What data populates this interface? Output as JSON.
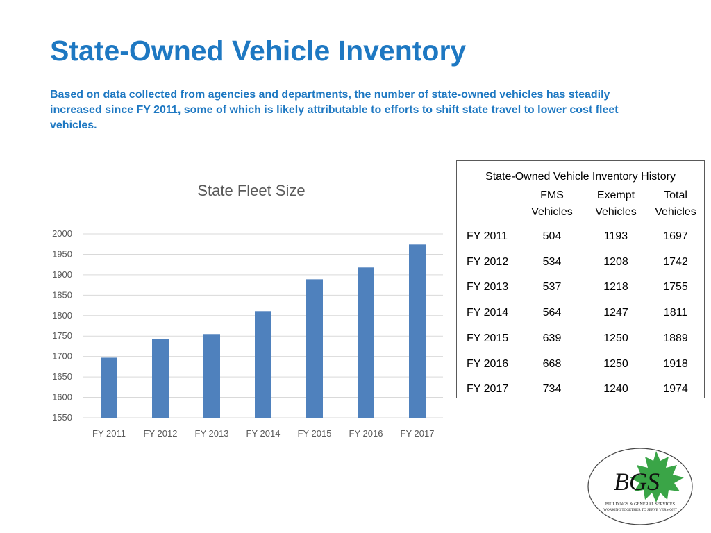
{
  "page": {
    "title": "State-Owned Vehicle Inventory",
    "description": "Based on data collected from agencies and departments, the number of state-owned vehicles has steadily increased since FY 2011, some of which is likely attributable to efforts to shift state travel to lower cost fleet vehicles."
  },
  "chart_data": {
    "type": "bar",
    "title": "State Fleet Size",
    "categories": [
      "FY 2011",
      "FY 2012",
      "FY 2013",
      "FY 2014",
      "FY 2015",
      "FY 2016",
      "FY 2017"
    ],
    "values": [
      1697,
      1742,
      1755,
      1811,
      1889,
      1918,
      1974
    ],
    "ylim": [
      1550,
      2000
    ],
    "yticks": [
      2000,
      1950,
      1900,
      1850,
      1800,
      1750,
      1700,
      1650,
      1600,
      1550
    ],
    "grid": true,
    "bar_color": "#4f81bd"
  },
  "table": {
    "caption": "State-Owned Vehicle Inventory History",
    "headers": [
      {
        "line1": "FMS",
        "line2": "Vehicles"
      },
      {
        "line1": "Exempt",
        "line2": "Vehicles"
      },
      {
        "line1": "Total",
        "line2": "Vehicles"
      }
    ],
    "rows": [
      {
        "year": "FY 2011",
        "fms": "504",
        "exempt": "1193",
        "total": "1697"
      },
      {
        "year": "FY 2012",
        "fms": "534",
        "exempt": "1208",
        "total": "1742"
      },
      {
        "year": "FY 2013",
        "fms": "537",
        "exempt": "1218",
        "total": "1755"
      },
      {
        "year": "FY 2014",
        "fms": "564",
        "exempt": "1247",
        "total": "1811"
      },
      {
        "year": "FY 2015",
        "fms": "639",
        "exempt": "1250",
        "total": "1889"
      },
      {
        "year": "FY 2016",
        "fms": "668",
        "exempt": "1250",
        "total": "1918"
      },
      {
        "year": "FY 2017",
        "fms": "734",
        "exempt": "1240",
        "total": "1974"
      }
    ]
  },
  "logo": {
    "letters": "BGS",
    "line1": "BUILDINGS & GENERAL SERVICES",
    "line2": "WORKING TOGETHER TO SERVE VERMONT",
    "leaf_color": "#3aa547"
  }
}
